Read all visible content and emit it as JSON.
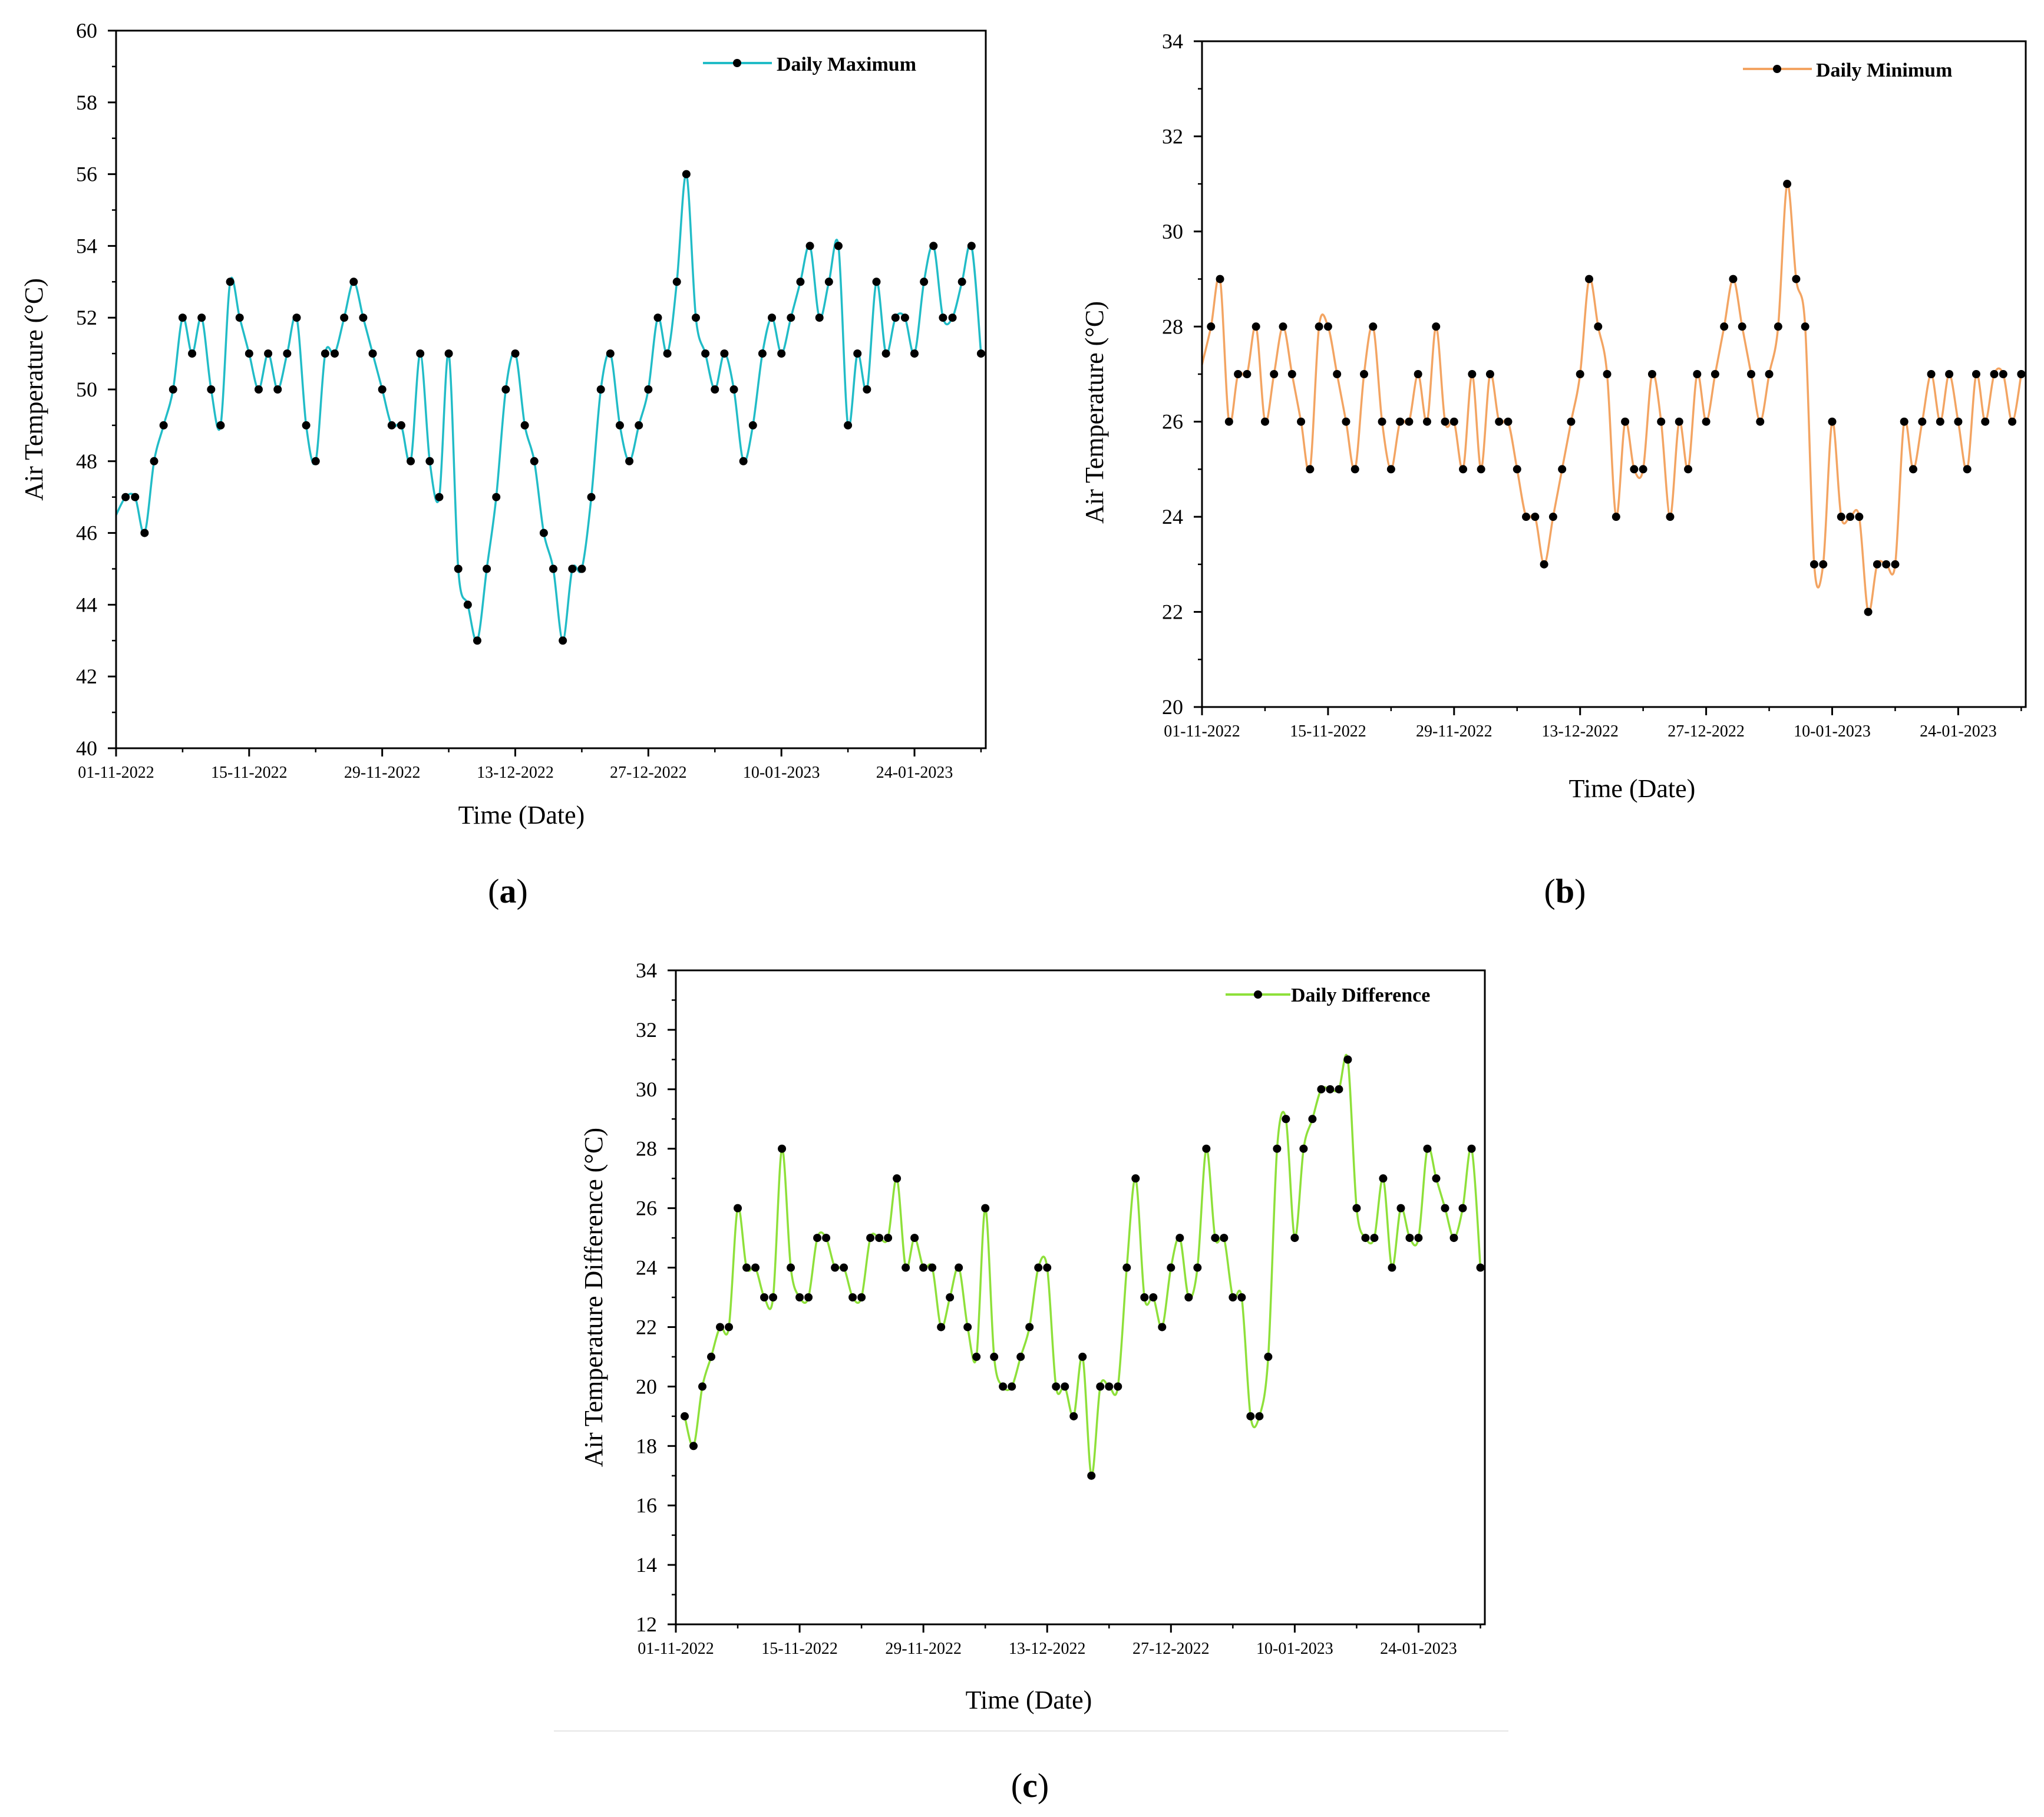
{
  "figure": {
    "panels": [
      "(a)",
      "(b)",
      "(c)"
    ]
  },
  "chart_data": [
    {
      "id": "a",
      "type": "line",
      "panel_label": "a",
      "title": "",
      "legend": "Daily Maximum",
      "legend_position": "top-right",
      "line_color": "#21bcc7",
      "marker_color": "#000000",
      "xlabel": "Time (Date)",
      "ylabel": "Air Temperature (°C)",
      "ylim": [
        40,
        60
      ],
      "yticks": [
        40,
        42,
        44,
        46,
        48,
        50,
        52,
        54,
        56,
        58,
        60
      ],
      "x_range_days": [
        0,
        91.5
      ],
      "xticks": [
        {
          "day": 0,
          "label": "01-11-2022"
        },
        {
          "day": 14,
          "label": "15-11-2022"
        },
        {
          "day": 28,
          "label": "29-11-2022"
        },
        {
          "day": 42,
          "label": "13-12-2022"
        },
        {
          "day": 56,
          "label": "27-12-2022"
        },
        {
          "day": 70,
          "label": "10-01-2023"
        },
        {
          "day": 84,
          "label": "24-01-2023"
        }
      ],
      "start_value": 46.5,
      "values": [
        47,
        47,
        46,
        48,
        49,
        50,
        52,
        51,
        52,
        50,
        49,
        53,
        52,
        51,
        50,
        51,
        50,
        51,
        52,
        49,
        48,
        51,
        51,
        52,
        53,
        52,
        51,
        50,
        49,
        49,
        48,
        51,
        48,
        47,
        51,
        45,
        44,
        43,
        45,
        47,
        50,
        51,
        49,
        48,
        46,
        45,
        43,
        45,
        45,
        47,
        50,
        51,
        49,
        48,
        49,
        50,
        52,
        51,
        53,
        56,
        52,
        51,
        50,
        51,
        50,
        48,
        49,
        51,
        52,
        51,
        52,
        53,
        54,
        52,
        53,
        54,
        49,
        51,
        50,
        53,
        51,
        52,
        52,
        51,
        53,
        54,
        52,
        52,
        53,
        54,
        51
      ]
    },
    {
      "id": "b",
      "type": "line",
      "panel_label": "b",
      "title": "",
      "legend": "Daily Minimum",
      "legend_position": "top-right",
      "line_color": "#f3a462",
      "marker_color": "#000000",
      "xlabel": "Time (Date)",
      "ylabel": "Air Temperature (°C)",
      "ylim": [
        20,
        34
      ],
      "yticks": [
        20,
        22,
        24,
        26,
        28,
        30,
        32,
        34
      ],
      "x_range_days": [
        0,
        91.5
      ],
      "xticks": [
        {
          "day": 0,
          "label": "01-11-2022"
        },
        {
          "day": 14,
          "label": "15-11-2022"
        },
        {
          "day": 28,
          "label": "29-11-2022"
        },
        {
          "day": 42,
          "label": "13-12-2022"
        },
        {
          "day": 56,
          "label": "27-12-2022"
        },
        {
          "day": 70,
          "label": "10-01-2023"
        },
        {
          "day": 84,
          "label": "24-01-2023"
        }
      ],
      "start_value": 27.2,
      "values": [
        28,
        29,
        26,
        27,
        27,
        28,
        26,
        27,
        28,
        27,
        26,
        25,
        28,
        28,
        27,
        26,
        25,
        27,
        28,
        26,
        25,
        26,
        26,
        27,
        26,
        28,
        26,
        26,
        25,
        27,
        25,
        27,
        26,
        26,
        25,
        24,
        24,
        23,
        24,
        25,
        26,
        27,
        29,
        28,
        27,
        24,
        26,
        25,
        25,
        27,
        26,
        24,
        26,
        25,
        27,
        26,
        27,
        28,
        29,
        28,
        27,
        26,
        27,
        28,
        31,
        29,
        28,
        23,
        23,
        26,
        24,
        24,
        24,
        22,
        23,
        23,
        23,
        26,
        25,
        26,
        27,
        26,
        27,
        26,
        25,
        27,
        26,
        27,
        27,
        26,
        27
      ]
    },
    {
      "id": "c",
      "type": "line",
      "panel_label": "c",
      "title": "",
      "legend": "Daily Difference",
      "legend_position": "top-right",
      "line_color": "#8ee03a",
      "marker_color": "#000000",
      "xlabel": "Time (Date)",
      "ylabel": "Air Temperature Difference (°C)",
      "ylim": [
        12,
        34
      ],
      "yticks": [
        12,
        14,
        16,
        18,
        20,
        22,
        24,
        26,
        28,
        30,
        32,
        34
      ],
      "x_range_days": [
        0,
        91.5
      ],
      "xticks": [
        {
          "day": 0,
          "label": "01-11-2022"
        },
        {
          "day": 14,
          "label": "15-11-2022"
        },
        {
          "day": 28,
          "label": "29-11-2022"
        },
        {
          "day": 42,
          "label": "13-12-2022"
        },
        {
          "day": 56,
          "label": "27-12-2022"
        },
        {
          "day": 70,
          "label": "10-01-2023"
        },
        {
          "day": 84,
          "label": "24-01-2023"
        }
      ],
      "values": [
        19,
        18,
        20,
        21,
        22,
        22,
        26,
        24,
        24,
        23,
        23,
        28,
        24,
        23,
        23,
        25,
        25,
        24,
        24,
        23,
        23,
        25,
        25,
        25,
        27,
        24,
        25,
        24,
        24,
        22,
        23,
        24,
        22,
        21,
        26,
        21,
        20,
        20,
        21,
        22,
        24,
        24,
        20,
        20,
        19,
        21,
        17,
        20,
        20,
        20,
        24,
        27,
        23,
        23,
        22,
        24,
        25,
        23,
        24,
        28,
        25,
        25,
        23,
        23,
        19,
        19,
        21,
        28,
        29,
        25,
        28,
        29,
        30,
        30,
        30,
        31,
        26,
        25,
        25,
        27,
        24,
        26,
        25,
        25,
        28,
        27,
        26,
        25,
        26,
        28,
        24
      ]
    }
  ]
}
